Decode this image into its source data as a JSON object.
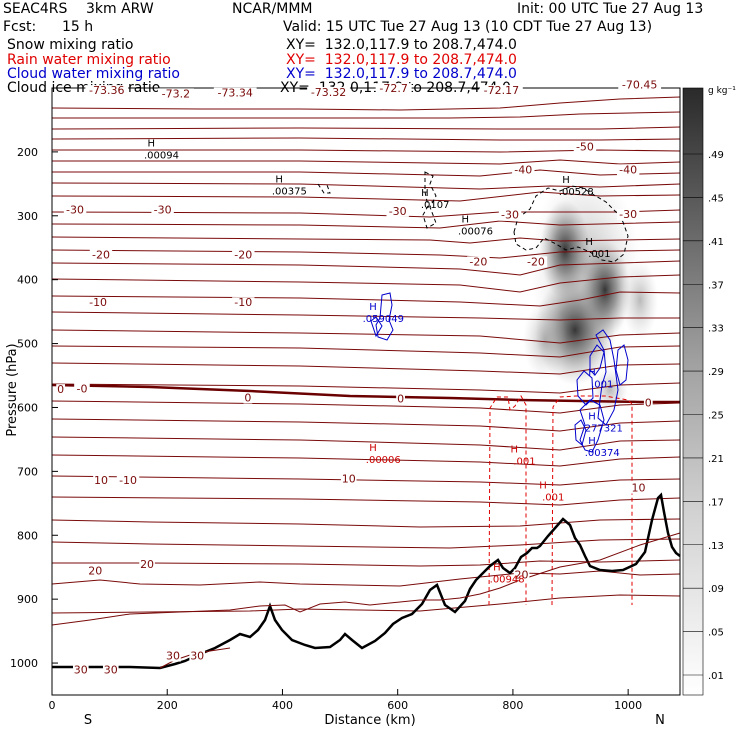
{
  "header": {
    "project": "SEAC4RS",
    "model": "3km ARW",
    "org": "NCAR/MMM",
    "init": "Init: 00 UTC Tue 27 Aug 13",
    "fcst_label": "Fcst:",
    "fcst_value": "15 h",
    "valid": "Valid: 15 UTC Tue 27 Aug 13 (10 CDT Tue 27 Aug 13)"
  },
  "fields": [
    {
      "name": "Snow mixing ratio",
      "xy": "XY=  132.0,117.9 to 208.7,474.0",
      "color": "#000000"
    },
    {
      "name": "Rain water mixing ratio",
      "xy": "XY=  132.0,117.9 to 208.7,474.0",
      "color": "#e00000"
    },
    {
      "name": "Cloud water mixing ratio",
      "xy": "XY=  132.0,117.9 to 208.7,474.0",
      "color": "#0000cc"
    },
    {
      "name": "Cloud ice mixing ratio",
      "xy": "XY=  132.0,117.9 to 208.7,474.0",
      "color": "#000000"
    }
  ],
  "chart_data": {
    "type": "cross-section",
    "xlabel": "Distance (km)",
    "ylabel": "Pressure (hPa)",
    "x_ticks": [
      0,
      200,
      400,
      600,
      800,
      1000
    ],
    "y_ticks": [
      200,
      300,
      400,
      500,
      600,
      700,
      800,
      900,
      1000
    ],
    "xlim": [
      0,
      1090
    ],
    "ylim": [
      1050,
      100
    ],
    "x_end_labels": {
      "left": "S",
      "right": "N"
    },
    "temperature_line_color": "#7a0a0a",
    "freezing_line_color": "#6a0000",
    "temperature_labels": [
      {
        "text": "-73.36",
        "x": 95,
        "p": 108
      },
      {
        "text": "-73.2",
        "x": 215,
        "p": 113
      },
      {
        "text": "-73.34",
        "x": 318,
        "p": 112
      },
      {
        "text": "-73.32",
        "x": 480,
        "p": 111
      },
      {
        "text": "-72.7",
        "x": 593,
        "p": 105
      },
      {
        "text": "-72.17",
        "x": 780,
        "p": 108
      },
      {
        "text": "-70.45",
        "x": 1020,
        "p": 99
      },
      {
        "text": "-50",
        "x": 925,
        "p": 196
      },
      {
        "text": "-40",
        "x": 818,
        "p": 232
      },
      {
        "text": "-40",
        "x": 1000,
        "p": 232
      },
      {
        "text": "-30",
        "x": 40,
        "p": 295
      },
      {
        "text": "-30",
        "x": 192,
        "p": 295
      },
      {
        "text": "-30",
        "x": 600,
        "p": 297
      },
      {
        "text": "-30",
        "x": 795,
        "p": 303
      },
      {
        "text": "-30",
        "x": 1000,
        "p": 302
      },
      {
        "text": "-20",
        "x": 85,
        "p": 365
      },
      {
        "text": "-20",
        "x": 332,
        "p": 365
      },
      {
        "text": "-20",
        "x": 740,
        "p": 376
      },
      {
        "text": "-20",
        "x": 840,
        "p": 376
      },
      {
        "text": "-10",
        "x": 80,
        "p": 440
      },
      {
        "text": "-10",
        "x": 332,
        "p": 440
      },
      {
        "text": "0",
        "x": 15,
        "p": 576
      },
      {
        "text": "-0",
        "x": 52,
        "p": 575
      },
      {
        "text": "0",
        "x": 340,
        "p": 589
      },
      {
        "text": "0",
        "x": 605,
        "p": 591
      },
      {
        "text": "0",
        "x": 1035,
        "p": 597
      },
      {
        "text": "10",
        "x": 85,
        "p": 718
      },
      {
        "text": "-10",
        "x": 132,
        "p": 718
      },
      {
        "text": "10",
        "x": 515,
        "p": 716
      },
      {
        "text": "10",
        "x": 1018,
        "p": 730
      },
      {
        "text": "20",
        "x": 75,
        "p": 860
      },
      {
        "text": "20",
        "x": 165,
        "p": 850
      },
      {
        "text": "20",
        "x": 815,
        "p": 866
      },
      {
        "text": "30",
        "x": 50,
        "p": 1015
      },
      {
        "text": "30",
        "x": 102,
        "p": 1015
      },
      {
        "text": "30",
        "x": 210,
        "p": 993
      },
      {
        "text": "30",
        "x": 252,
        "p": 993
      }
    ],
    "maxima": [
      {
        "text": ".00094",
        "x": 190,
        "p": 209,
        "color": "#000000"
      },
      {
        "text": ".00375",
        "x": 412,
        "p": 265,
        "color": "#000000"
      },
      {
        "text": ".0107",
        "x": 665,
        "p": 286,
        "color": "#000000"
      },
      {
        "text": ".00076",
        "x": 735,
        "p": 328,
        "color": "#000000"
      },
      {
        "text": ".00528",
        "x": 910,
        "p": 266,
        "color": "#000000"
      },
      {
        "text": ".001",
        "x": 950,
        "p": 363,
        "color": "#000000"
      },
      {
        "text": ".059049",
        "x": 575,
        "p": 465,
        "color": "#0000cc"
      },
      {
        "text": ".001",
        "x": 955,
        "p": 567,
        "color": "#0000cc"
      },
      {
        "text": ".277321",
        "x": 955,
        "p": 636,
        "color": "#0000cc"
      },
      {
        "text": ".00374",
        "x": 955,
        "p": 674,
        "color": "#0000cc"
      },
      {
        "text": ".00006",
        "x": 575,
        "p": 685,
        "color": "#cc0000"
      },
      {
        "text": ".001",
        "x": 820,
        "p": 688,
        "color": "#cc0000"
      },
      {
        "text": ".001",
        "x": 870,
        "p": 744,
        "color": "#cc0000"
      },
      {
        "text": ".00948",
        "x": 790,
        "p": 872,
        "color": "#cc0000"
      }
    ],
    "colorbar": {
      "unit": "g kg⁻¹",
      "labels": [
        ".01",
        ".05",
        ".09",
        ".13",
        ".17",
        ".21",
        ".25",
        ".29",
        ".33",
        ".37",
        ".41",
        ".45",
        ".49"
      ]
    }
  }
}
